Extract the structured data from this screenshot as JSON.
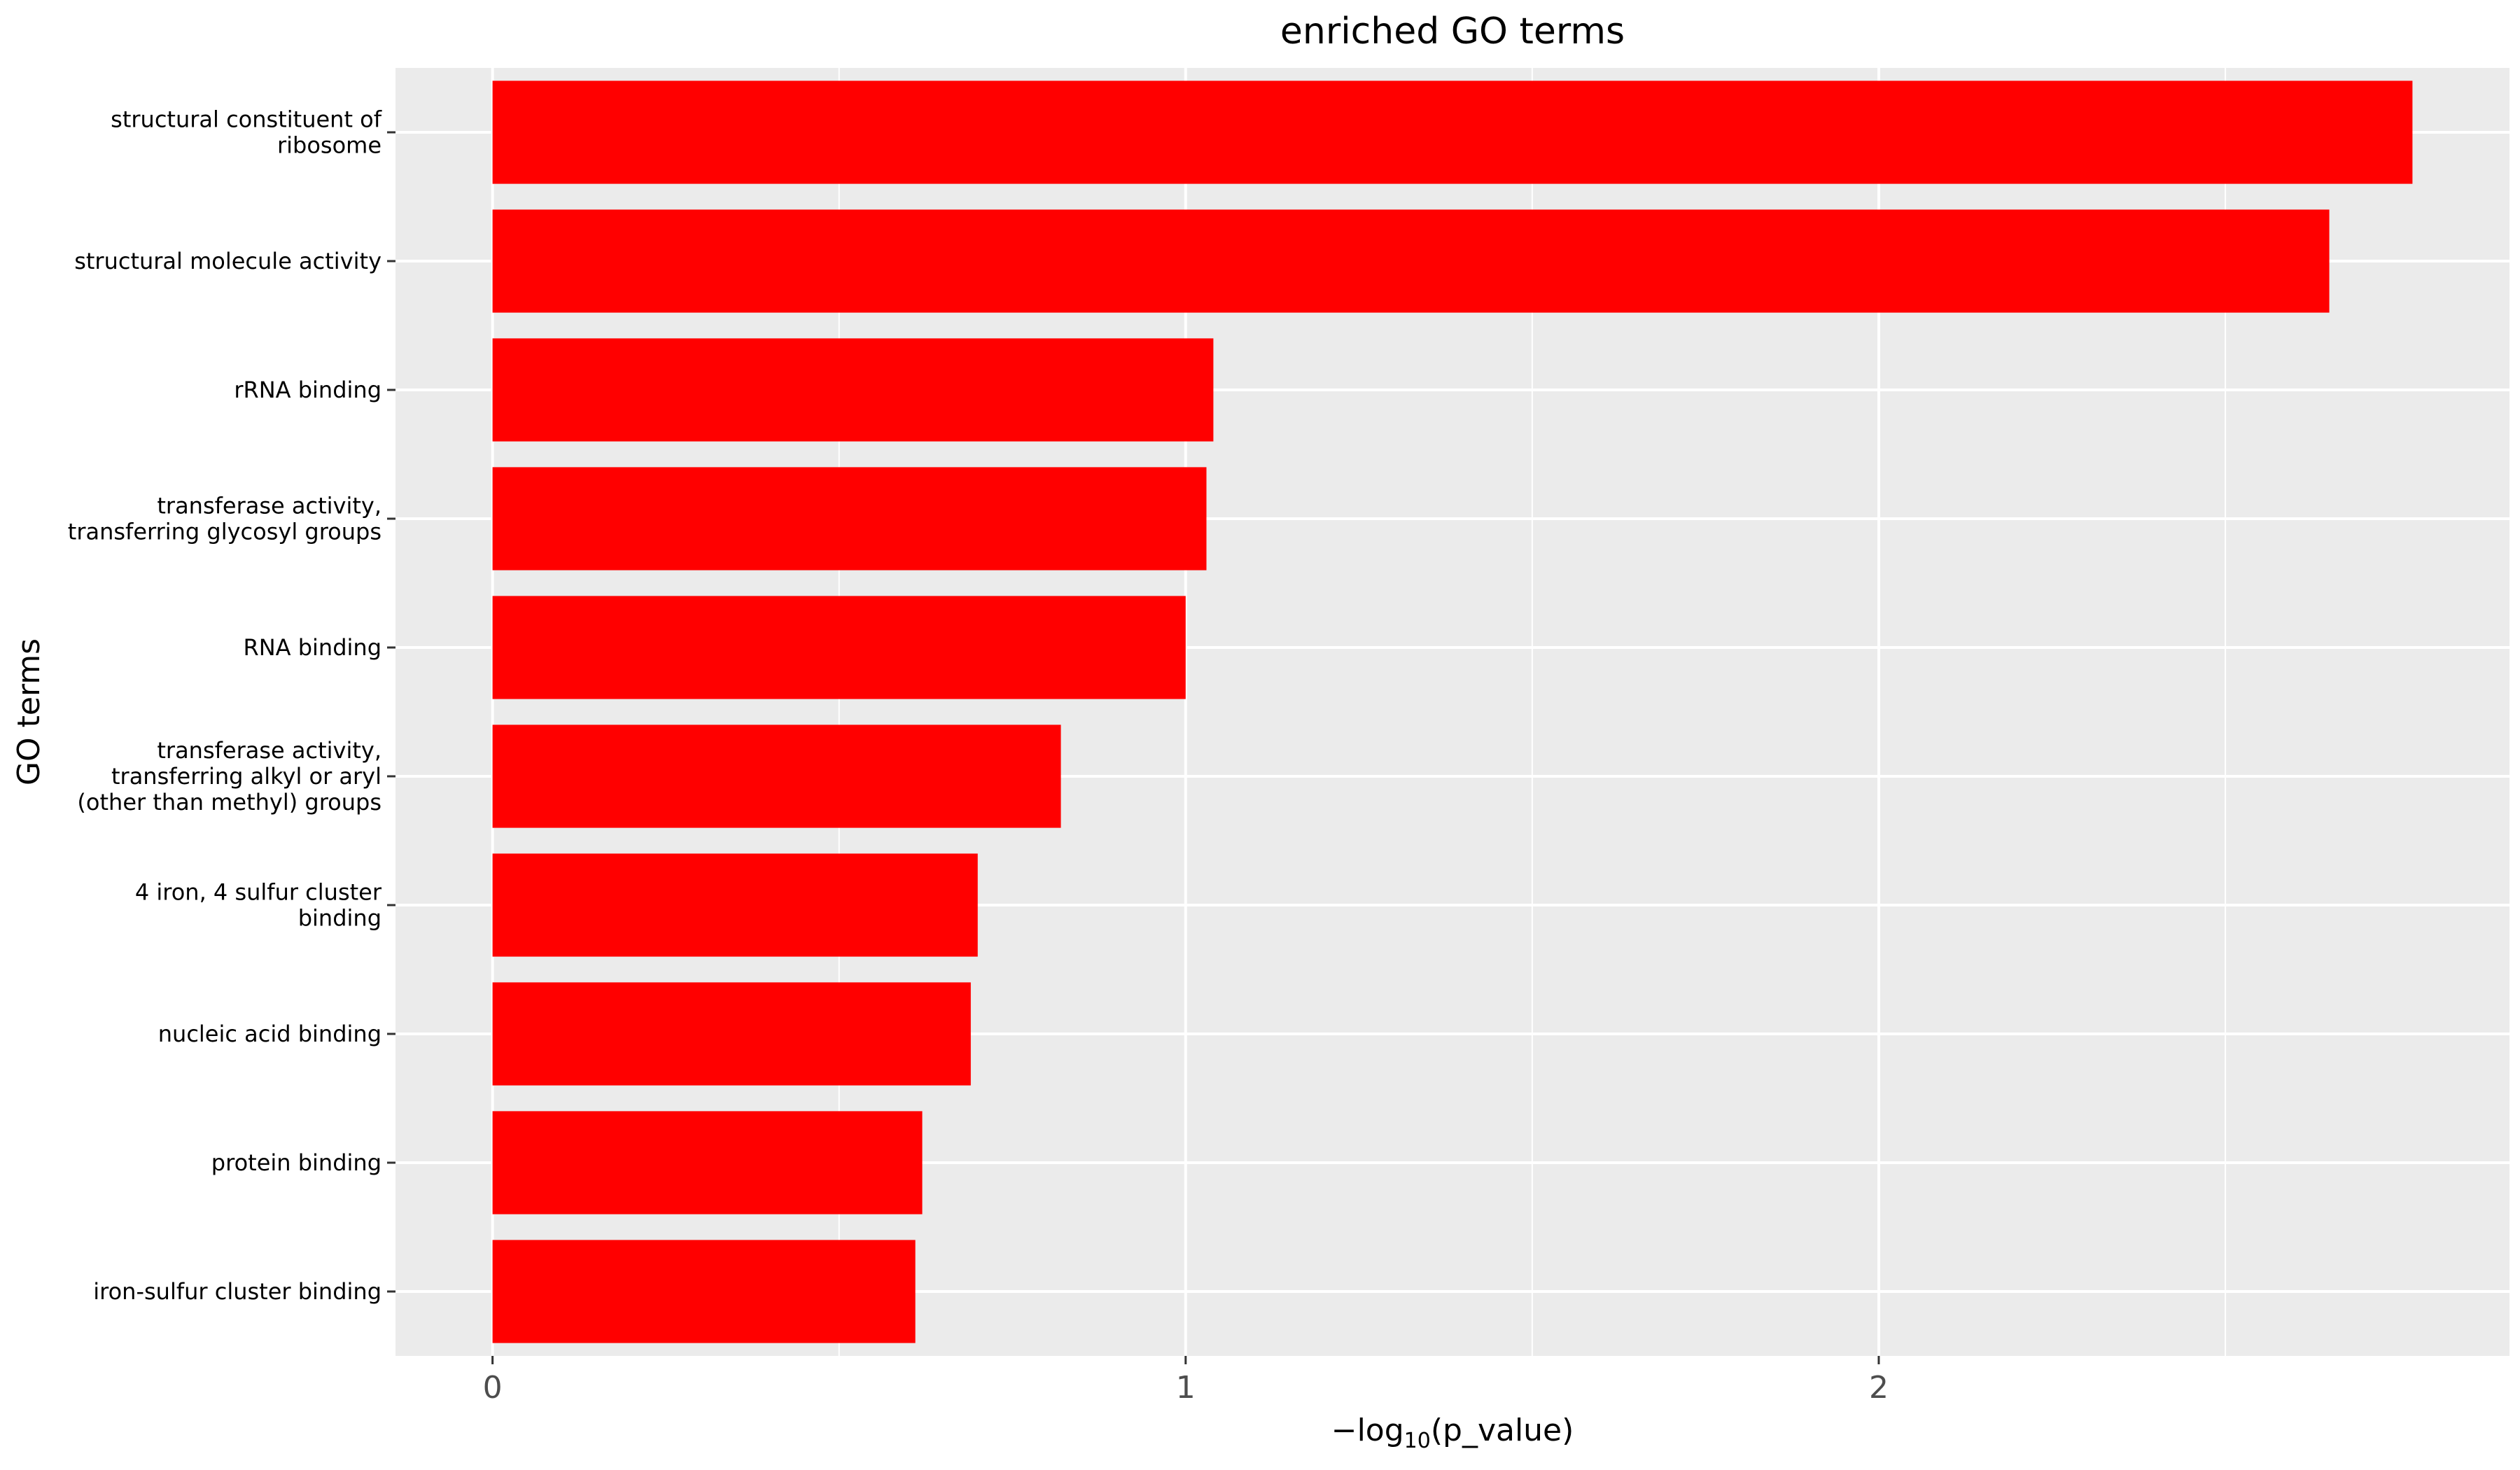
{
  "chart_data": {
    "type": "bar",
    "orientation": "horizontal",
    "title": "enriched GO terms",
    "xlabel": "−log",
    "xlabel_subscript": "10",
    "xlabel_suffix": "(p_value)",
    "ylabel": "GO terms",
    "categories": [
      "structural constituent of\nribosome",
      "structural molecule activity",
      "rRNA binding",
      "transferase activity,\ntransferring glycosyl groups",
      "RNA binding",
      "transferase activity,\ntransferring alkyl or aryl\n(other than methyl) groups",
      "4 iron, 4 sulfur cluster\nbinding",
      "nucleic acid binding",
      "protein binding",
      "iron-sulfur cluster binding"
    ],
    "values": [
      2.77,
      2.65,
      1.04,
      1.03,
      1.0,
      0.82,
      0.7,
      0.69,
      0.62,
      0.61
    ],
    "xlim": [
      -0.14,
      2.91
    ],
    "xticks": [
      0,
      1,
      2
    ],
    "xtick_labels": [
      "0",
      "1",
      "2"
    ],
    "grid": true,
    "colors": {
      "bar": "#ff0000",
      "panel": "#ebebeb",
      "grid": "#ffffff",
      "tick_label": "#4d4d4d"
    }
  }
}
